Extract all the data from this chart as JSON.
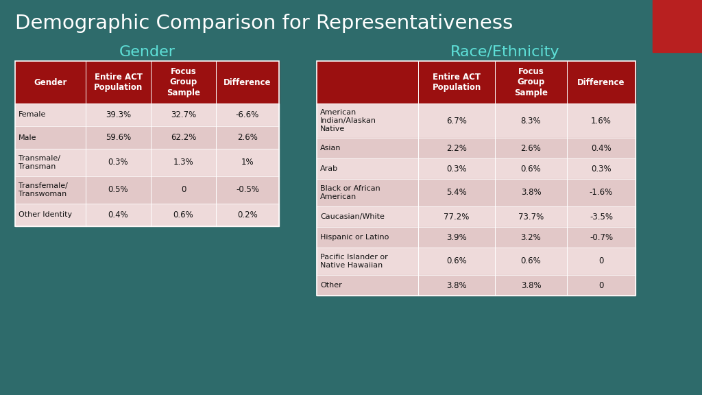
{
  "title": "Demographic Comparison for Representativeness",
  "title_color": "#ffffff",
  "title_fontsize": 21,
  "background_color": "#2e6b6b",
  "header_bg": "#9b1010",
  "header_text_color": "#ffffff",
  "row_bg_odd": "#eedada",
  "row_bg_even": "#e2c8c8",
  "cell_text_color": "#111111",
  "label_color": "#5ee0d8",
  "red_corner_color": "#b82020",
  "gender_title": "Gender",
  "gender_col_headers": [
    "Gender",
    "Entire ACT\nPopulation",
    "Focus\nGroup\nSample",
    "Difference"
  ],
  "gender_rows": [
    [
      "Female",
      "39.3%",
      "32.7%",
      "-6.6%"
    ],
    [
      "Male",
      "59.6%",
      "62.2%",
      "2.6%"
    ],
    [
      "Transmale/\nTransman",
      "0.3%",
      "1.3%",
      "1%"
    ],
    [
      "Transfemale/\nTranswoman",
      "0.5%",
      "0",
      "-0.5%"
    ],
    [
      "Other Identity",
      "0.4%",
      "0.6%",
      "0.2%"
    ]
  ],
  "gender_row_heights": [
    33,
    33,
    40,
    40,
    33
  ],
  "race_title": "Race/Ethnicity",
  "race_col_headers": [
    "",
    "Entire ACT\nPopulation",
    "Focus\nGroup\nSample",
    "Difference"
  ],
  "race_rows": [
    [
      "American\nIndian/Alaskan\nNative",
      "6.7%",
      "8.3%",
      "1.6%"
    ],
    [
      "Asian",
      "2.2%",
      "2.6%",
      "0.4%"
    ],
    [
      "Arab",
      "0.3%",
      "0.6%",
      "0.3%"
    ],
    [
      "Black or African\nAmerican",
      "5.4%",
      "3.8%",
      "-1.6%"
    ],
    [
      "Caucasian/White",
      "77.2%",
      "73.7%",
      "-3.5%"
    ],
    [
      "Hispanic or Latino",
      "3.9%",
      "3.2%",
      "-0.7%"
    ],
    [
      "Pacific Islander or\nNative Hawaiian",
      "0.6%",
      "0.6%",
      "0"
    ],
    [
      "Other",
      "3.8%",
      "3.8%",
      "0"
    ]
  ],
  "race_row_heights": [
    50,
    30,
    30,
    40,
    30,
    30,
    40,
    30
  ]
}
